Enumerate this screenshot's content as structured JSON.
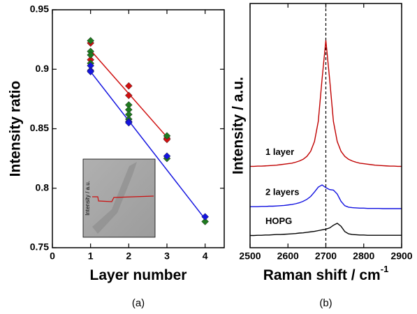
{
  "chart_data": [
    {
      "type": "scatter",
      "caption": "(a)",
      "xlabel": "Layer number",
      "ylabel": "Intensity ratio",
      "xlim": [
        0,
        4.5
      ],
      "xticks": [
        0,
        1,
        2,
        3,
        4
      ],
      "ylim": [
        0.75,
        0.95
      ],
      "yticks": [
        0.75,
        0.8,
        0.85,
        0.9,
        0.95
      ],
      "series": [
        {
          "color": "#d01010",
          "x": [
            1,
            1,
            2,
            2,
            3,
            3
          ],
          "values": [
            0.922,
            0.908,
            0.886,
            0.878,
            0.842,
            0.841
          ]
        },
        {
          "color": "#1f7a1f",
          "x": [
            1,
            1,
            1,
            1,
            2,
            2,
            2,
            2,
            3,
            3,
            4
          ],
          "values": [
            0.924,
            0.915,
            0.912,
            0.905,
            0.87,
            0.866,
            0.862,
            0.858,
            0.844,
            0.825,
            0.772
          ]
        },
        {
          "color": "#1414e0",
          "x": [
            1,
            1,
            1,
            2,
            2,
            3,
            4
          ],
          "values": [
            0.903,
            0.899,
            0.898,
            0.856,
            0.855,
            0.827,
            0.776
          ]
        }
      ],
      "fits": [
        {
          "color": "#d01010",
          "x": [
            1,
            3
          ],
          "values": [
            0.916,
            0.843
          ]
        },
        {
          "color": "#1414e0",
          "x": [
            1,
            4
          ],
          "values": [
            0.898,
            0.774
          ]
        }
      ],
      "inset": {
        "ylabel": "Intensity / a.u."
      }
    },
    {
      "type": "line",
      "caption": "(b)",
      "xlabel": "Raman shift / cm",
      "xlabel_sup": "-1",
      "ylabel": "Intensity / a.u.",
      "xlim": [
        2500,
        2900
      ],
      "xticks": [
        2500,
        2600,
        2700,
        2800,
        2900
      ],
      "ylim": [
        0,
        10
      ],
      "vline": 2700,
      "x": [
        2500,
        2510,
        2520,
        2530,
        2540,
        2550,
        2560,
        2570,
        2580,
        2590,
        2600,
        2610,
        2620,
        2630,
        2640,
        2650,
        2660,
        2670,
        2680,
        2690,
        2700,
        2710,
        2720,
        2730,
        2740,
        2750,
        2760,
        2770,
        2780,
        2790,
        2800,
        2810,
        2820,
        2830,
        2840,
        2850,
        2860,
        2870,
        2880,
        2890,
        2900
      ],
      "series": [
        {
          "name": "1 layer",
          "color": "#c00000",
          "values": [
            3.33,
            3.33,
            3.34,
            3.34,
            3.35,
            3.36,
            3.37,
            3.38,
            3.4,
            3.42,
            3.44,
            3.46,
            3.5,
            3.55,
            3.62,
            3.74,
            3.95,
            4.35,
            5.17,
            6.9,
            8.49,
            6.9,
            5.17,
            4.35,
            3.95,
            3.74,
            3.62,
            3.55,
            3.5,
            3.46,
            3.44,
            3.42,
            3.4,
            3.38,
            3.37,
            3.36,
            3.35,
            3.34,
            3.34,
            3.33,
            3.33
          ]
        },
        {
          "name": "2 layers",
          "color": "#1010e0",
          "values": [
            1.68,
            1.68,
            1.68,
            1.69,
            1.69,
            1.7,
            1.7,
            1.71,
            1.72,
            1.73,
            1.75,
            1.77,
            1.8,
            1.84,
            1.9,
            1.98,
            2.1,
            2.28,
            2.48,
            2.57,
            2.46,
            2.38,
            2.36,
            2.2,
            1.9,
            1.72,
            1.66,
            1.64,
            1.63,
            1.62,
            1.62,
            1.61,
            1.61,
            1.61,
            1.61,
            1.6,
            1.6,
            1.6,
            1.6,
            1.6,
            1.6
          ]
        },
        {
          "name": "HOPG",
          "color": "#000000",
          "values": [
            0.5,
            0.5,
            0.51,
            0.51,
            0.52,
            0.52,
            0.53,
            0.54,
            0.54,
            0.55,
            0.56,
            0.57,
            0.58,
            0.6,
            0.61,
            0.63,
            0.65,
            0.67,
            0.7,
            0.73,
            0.76,
            0.81,
            0.92,
            1.0,
            0.88,
            0.66,
            0.57,
            0.54,
            0.53,
            0.52,
            0.52,
            0.51,
            0.51,
            0.51,
            0.51,
            0.51,
            0.51,
            0.51,
            0.51,
            0.51,
            0.51
          ]
        }
      ]
    }
  ]
}
